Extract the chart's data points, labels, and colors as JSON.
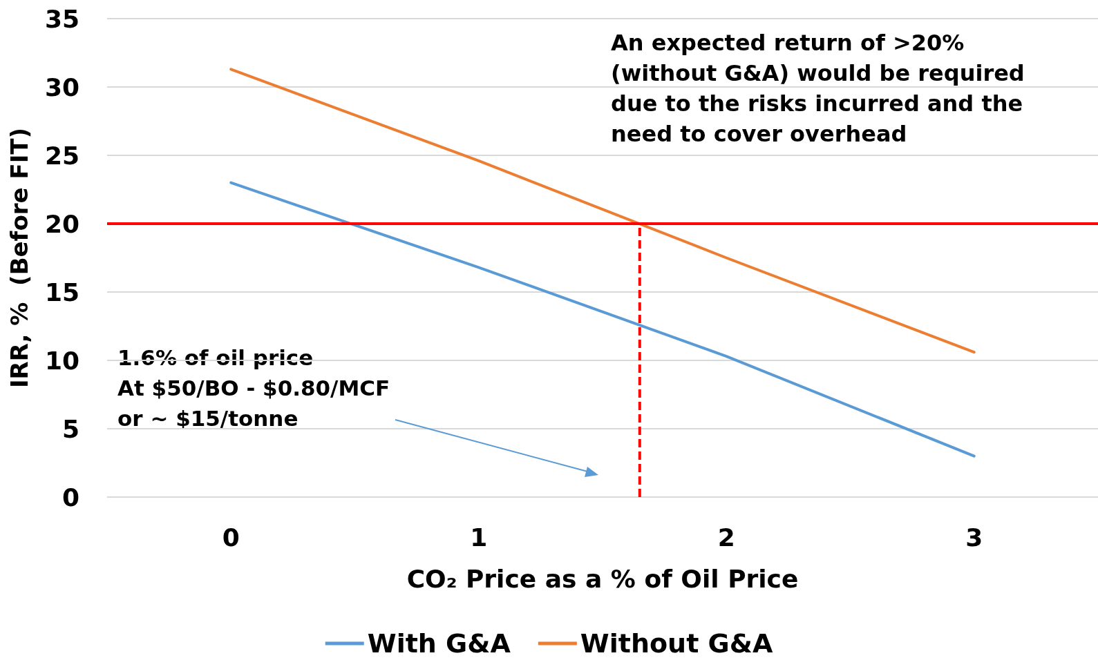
{
  "chart_data": {
    "type": "line",
    "xlabel": "CO₂ Price as a % of Oil Price",
    "ylabel": "IRR, %  (Before FIT)",
    "x": [
      0,
      1,
      2,
      3
    ],
    "xlim": [
      -0.5,
      3.5
    ],
    "xticks": [
      0,
      1,
      2,
      3
    ],
    "ylim": [
      0,
      35
    ],
    "yticks": [
      0,
      5,
      10,
      15,
      20,
      25,
      30,
      35
    ],
    "series": [
      {
        "name": "With G&A",
        "color": "#5b9bd5",
        "values": [
          23,
          16.8,
          10.3,
          3
        ]
      },
      {
        "name": "Without G&A",
        "color": "#ed7d31",
        "values": [
          31.3,
          24.6,
          17.5,
          10.6
        ]
      },
      {
        "color": "#ff0000",
        "x": [
          1.65,
          1.65
        ],
        "values": [
          0,
          20
        ],
        "line_style": "dashed"
      }
    ],
    "ref_lines": [
      {
        "axis": "y",
        "value": 20,
        "color": "#ff0000"
      }
    ],
    "annotations": [
      "An expected return of >20%\n(without G&A) would be required\ndue to the risks incurred and the\nneed to cover overhead",
      "1.6% of oil price\nAt $50/BO - $0.80/MCF\nor ~ $15/tonne"
    ],
    "grid": "y",
    "legend": "bottom",
    "marker": "none",
    "line_style": "solid"
  }
}
